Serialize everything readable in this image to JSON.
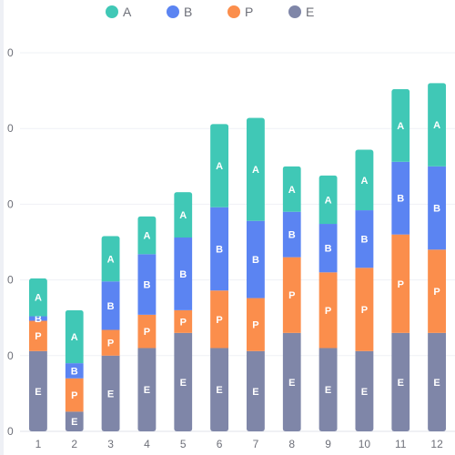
{
  "chart_data": {
    "type": "bar",
    "stacked": true,
    "categories": [
      "1",
      "2",
      "3",
      "4",
      "5",
      "6",
      "7",
      "8",
      "9",
      "10",
      "11",
      "12"
    ],
    "y_tick_labels": [
      "0",
      "0",
      "0",
      "0",
      "0",
      "0"
    ],
    "ylim": [
      0,
      250
    ],
    "grid": true,
    "legend_position": "top-center",
    "series": [
      {
        "name": "E",
        "color": "#7f86a8",
        "values": [
          53,
          13,
          50,
          55,
          65,
          55,
          53,
          65,
          55,
          53,
          65,
          65
        ]
      },
      {
        "name": "P",
        "color": "#fb8e4c",
        "values": [
          20,
          22,
          17,
          22,
          15,
          38,
          35,
          50,
          50,
          55,
          65,
          55
        ]
      },
      {
        "name": "B",
        "color": "#5b84f2",
        "values": [
          3,
          10,
          32,
          40,
          48,
          55,
          51,
          30,
          32,
          38,
          48,
          55
        ]
      },
      {
        "name": "A",
        "color": "#40c8b6",
        "values": [
          25,
          35,
          30,
          25,
          30,
          55,
          68,
          30,
          32,
          40,
          48,
          55
        ]
      }
    ]
  }
}
